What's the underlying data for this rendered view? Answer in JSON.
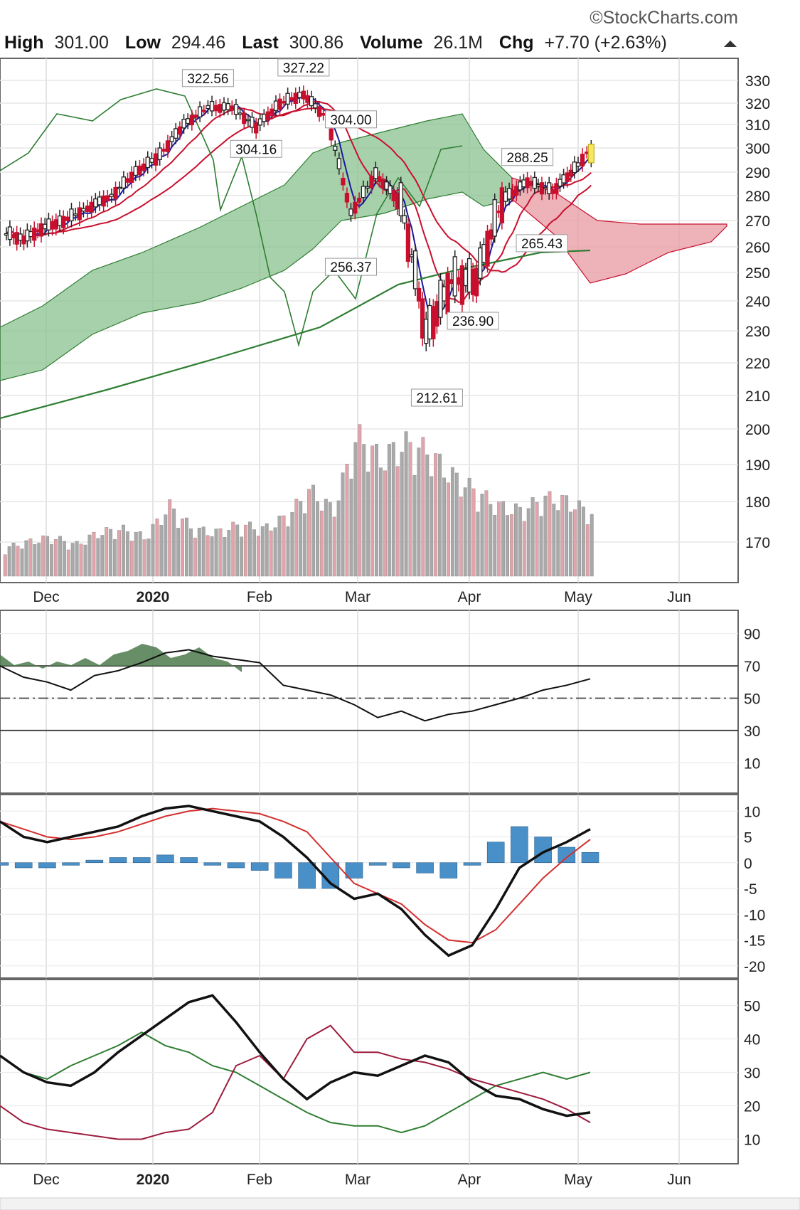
{
  "watermark": "©StockCharts.com",
  "header": {
    "high_label": "High",
    "high_value": "301.00",
    "low_label": "Low",
    "low_value": "294.46",
    "last_label": "Last",
    "last_value": "300.86",
    "volume_label": "Volume",
    "volume_value": "26.1M",
    "chg_label": "Chg",
    "chg_value": "+7.70 (+2.63%)",
    "chg_arrow": "up-triangle-icon"
  },
  "colors": {
    "up_candle": "#222222",
    "down_candle": "#c8102e",
    "ma_short": "#1a1a99",
    "ma_mid": "#c8102e",
    "ma_long": "#2e7d32",
    "cloud_green": "#8ac28f",
    "cloud_red": "#e89aa2",
    "volume_up": "#a9a9a9",
    "volume_down": "#e3a3ab",
    "macd_hist": "#4a90c8",
    "last_highlight": "#f5e663"
  },
  "chart_data": [
    {
      "panel": "price",
      "type": "candlestick",
      "x_axis": {
        "tick_labels": [
          "Dec",
          "2020",
          "Feb",
          "Mar",
          "Apr",
          "May",
          "Jun"
        ],
        "bold": [
          "2020"
        ]
      },
      "y_ticks": [
        330,
        320,
        310,
        300,
        290,
        280,
        270,
        260,
        250,
        240,
        230,
        220,
        210,
        200,
        190,
        180,
        170
      ],
      "price_range": [
        200,
        330
      ],
      "callouts": [
        {
          "label": "322.56",
          "date": "2020-01-17"
        },
        {
          "label": "327.22",
          "date": "2020-02-14"
        },
        {
          "label": "304.00",
          "date": "2020-02-28"
        },
        {
          "label": "304.16",
          "date": "2020-01-31"
        },
        {
          "label": "288.25",
          "date": "2020-04-17"
        },
        {
          "label": "256.37",
          "date": "2020-02-28"
        },
        {
          "label": "265.43",
          "date": "2020-04-21"
        },
        {
          "label": "236.90",
          "date": "2020-04-02"
        },
        {
          "label": "212.61",
          "date": "2020-03-23"
        }
      ],
      "close_series": [
        {
          "date": "2019-11-15",
          "close": 265
        },
        {
          "date": "2019-11-22",
          "close": 263
        },
        {
          "date": "2019-11-29",
          "close": 267
        },
        {
          "date": "2019-12-06",
          "close": 270
        },
        {
          "date": "2019-12-13",
          "close": 275
        },
        {
          "date": "2019-12-20",
          "close": 280
        },
        {
          "date": "2019-12-27",
          "close": 290
        },
        {
          "date": "2020-01-03",
          "close": 297
        },
        {
          "date": "2020-01-10",
          "close": 310
        },
        {
          "date": "2020-01-17",
          "close": 318
        },
        {
          "date": "2020-01-24",
          "close": 318
        },
        {
          "date": "2020-01-31",
          "close": 309
        },
        {
          "date": "2020-02-07",
          "close": 320
        },
        {
          "date": "2020-02-14",
          "close": 324
        },
        {
          "date": "2020-02-21",
          "close": 313
        },
        {
          "date": "2020-02-28",
          "close": 273
        },
        {
          "date": "2020-03-06",
          "close": 289
        },
        {
          "date": "2020-03-13",
          "close": 277
        },
        {
          "date": "2020-03-20",
          "close": 229
        },
        {
          "date": "2020-03-27",
          "close": 247
        },
        {
          "date": "2020-04-03",
          "close": 248
        },
        {
          "date": "2020-04-10",
          "close": 278
        },
        {
          "date": "2020-04-17",
          "close": 286
        },
        {
          "date": "2020-04-24",
          "close": 282
        },
        {
          "date": "2020-05-01",
          "close": 293
        },
        {
          "date": "2020-05-05",
          "close": 300.86
        }
      ]
    },
    {
      "panel": "volume",
      "type": "bar",
      "values_relative": [
        0.18,
        0.22,
        0.25,
        0.2,
        0.28,
        0.3,
        0.25,
        0.45,
        0.3,
        0.28,
        0.33,
        0.3,
        0.38,
        0.55,
        0.42,
        0.9,
        0.75,
        0.85,
        0.8,
        0.65,
        0.55,
        0.45,
        0.42,
        0.5,
        0.48,
        0.4
      ]
    },
    {
      "panel": "rsi",
      "type": "line",
      "y_ticks": [
        90,
        70,
        50,
        30,
        10
      ],
      "overbought": 70,
      "oversold": 30,
      "midline": 50,
      "values": [
        70,
        63,
        60,
        55,
        64,
        67,
        72,
        78,
        80,
        76,
        74,
        72,
        58,
        55,
        52,
        46,
        38,
        42,
        36,
        40,
        42,
        46,
        50,
        55,
        58,
        62
      ]
    },
    {
      "panel": "macd",
      "type": "line",
      "y_ticks": [
        10,
        5,
        0,
        -5,
        -10,
        -15,
        -20
      ],
      "macd": [
        8,
        5,
        4,
        5,
        6,
        7,
        9,
        10.5,
        11,
        10,
        9,
        8,
        5,
        1,
        -4,
        -7,
        -6,
        -9,
        -14,
        -18,
        -16,
        -9,
        -1,
        2,
        4,
        6.5
      ],
      "signal": [
        8,
        6.5,
        5,
        4.5,
        5,
        6,
        7.5,
        9,
        10,
        10.5,
        10,
        9.5,
        8,
        6,
        1,
        -4,
        -6,
        -8,
        -12,
        -15,
        -15.5,
        -13,
        -8,
        -3,
        1,
        4.5
      ],
      "histogram": [
        -0.5,
        -1,
        -1,
        -0.5,
        0.5,
        1,
        1,
        1.5,
        1,
        -0.5,
        -1,
        -1.5,
        -3,
        -5,
        -5,
        -3,
        -0.5,
        -1,
        -2,
        -3,
        -0.5,
        4,
        7,
        5,
        3,
        2
      ]
    },
    {
      "panel": "adx",
      "type": "line",
      "y_ticks": [
        50,
        40,
        30,
        20,
        10
      ],
      "adx": [
        35,
        30,
        27,
        26,
        30,
        36,
        41,
        46,
        51,
        53,
        45,
        36,
        28,
        22,
        27,
        30,
        29,
        32,
        35,
        33,
        27,
        23,
        22,
        19,
        17,
        18
      ],
      "plus_di": [
        35,
        30,
        28,
        32,
        35,
        38,
        42,
        38,
        36,
        32,
        30,
        26,
        22,
        18,
        15,
        14,
        14,
        12,
        14,
        18,
        22,
        26,
        28,
        30,
        28,
        30
      ],
      "minus_di": [
        20,
        15,
        13,
        12,
        11,
        10,
        10,
        12,
        13,
        18,
        32,
        35,
        28,
        40,
        44,
        36,
        36,
        34,
        33,
        31,
        28,
        26,
        24,
        22,
        19,
        15
      ]
    }
  ]
}
